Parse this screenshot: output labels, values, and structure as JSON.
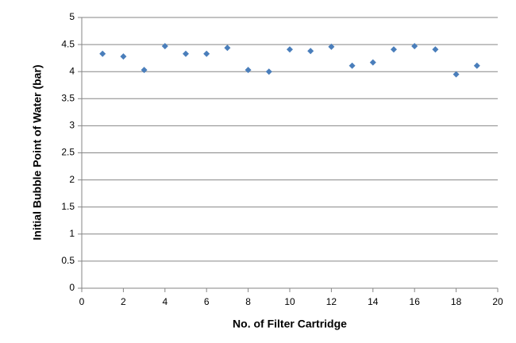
{
  "chart_data": {
    "type": "scatter",
    "x_label": "No. of Filter Cartridge",
    "y_label": "Initial Bubble Point of Water (bar)",
    "x": [
      1,
      2,
      3,
      4,
      5,
      6,
      7,
      8,
      9,
      10,
      11,
      12,
      13,
      14,
      15,
      16,
      17,
      18,
      19
    ],
    "values": [
      4.33,
      4.28,
      4.03,
      4.47,
      4.33,
      4.33,
      4.44,
      4.03,
      4.0,
      4.41,
      4.38,
      4.46,
      4.11,
      4.17,
      4.41,
      4.47,
      4.41,
      3.95,
      4.11
    ],
    "color": "#4a7ebb",
    "xlim": [
      0,
      20
    ],
    "xticks": [
      0,
      2,
      4,
      6,
      8,
      10,
      12,
      14,
      16,
      18,
      20
    ],
    "ylim": [
      0,
      5
    ],
    "yticks": [
      0,
      0.5,
      1,
      1.5,
      2,
      2.5,
      3,
      3.5,
      4,
      4.5,
      5
    ],
    "grid": true
  }
}
